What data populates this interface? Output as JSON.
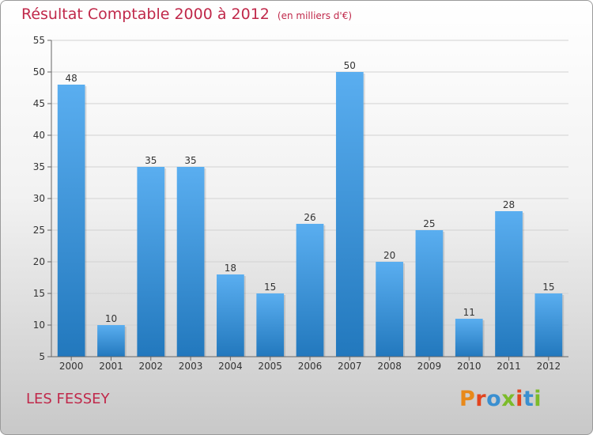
{
  "title": "Résultat Comptable 2000 à 2012",
  "subtitle": "(en milliers d'€)",
  "commune": "LES FESSEY",
  "logo": "Proxiti",
  "colors": {
    "title": "#c0284a",
    "bar_top": "#5aaef0",
    "bar_bottom": "#2278bd",
    "grid": "#d2d2d2",
    "axis": "#666666"
  },
  "chart_data": {
    "type": "bar",
    "title": "Résultat Comptable 2000 à 2012",
    "xlabel": "",
    "ylabel": "",
    "ylim": [
      5,
      55
    ],
    "yticks": [
      5,
      10,
      15,
      20,
      25,
      30,
      35,
      40,
      45,
      50,
      55
    ],
    "grid": true,
    "categories": [
      "2000",
      "2001",
      "2002",
      "2003",
      "2004",
      "2005",
      "2006",
      "2007",
      "2008",
      "2009",
      "2010",
      "2011",
      "2012"
    ],
    "values": [
      48,
      10,
      35,
      35,
      18,
      15,
      26,
      50,
      20,
      25,
      11,
      28,
      15
    ]
  }
}
